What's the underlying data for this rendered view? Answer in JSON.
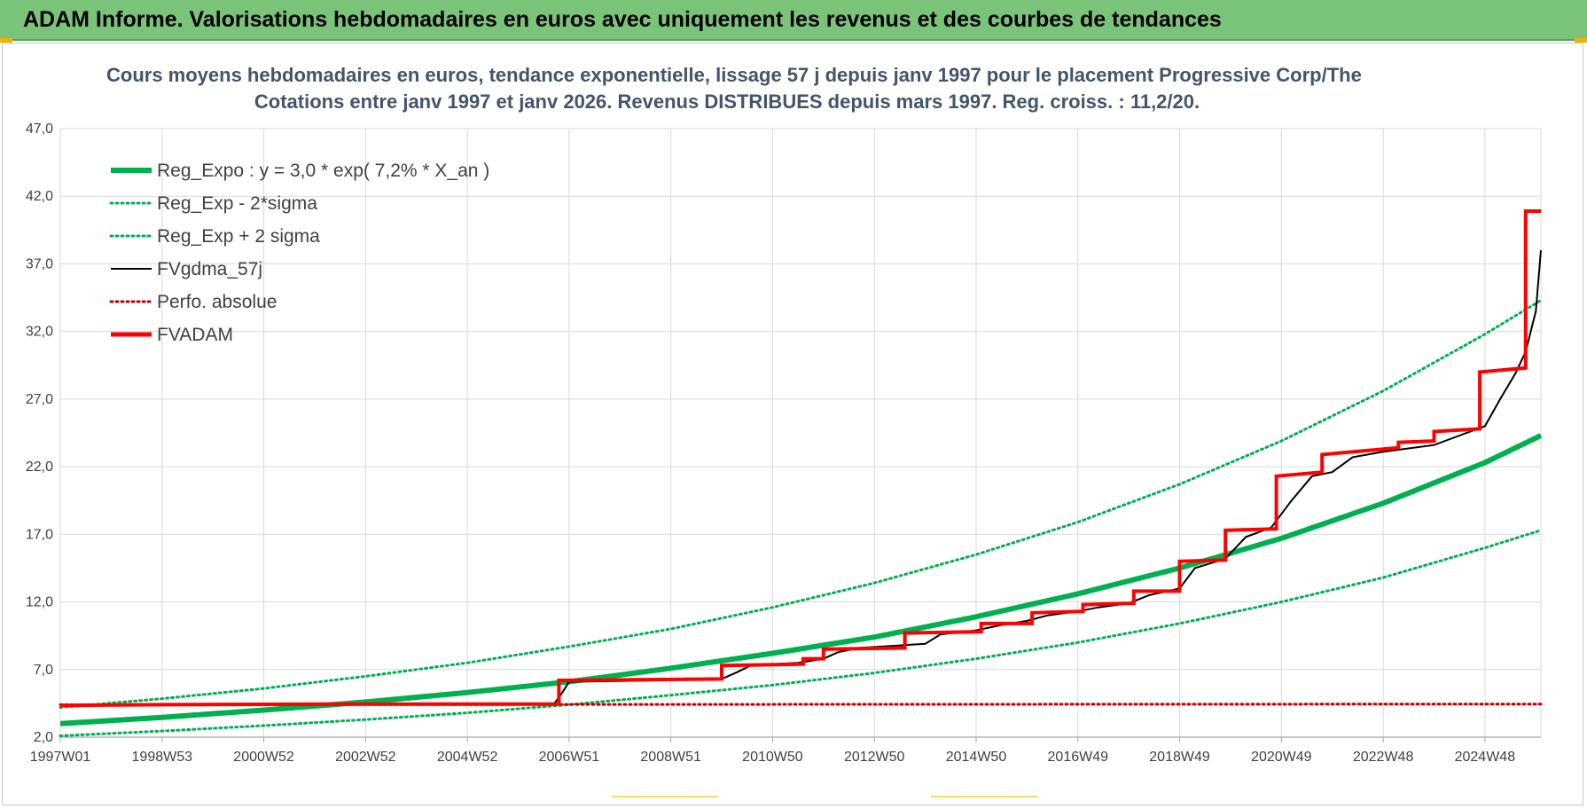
{
  "banner": {
    "title": "ADAM Informe. Valorisations hebdomadaires en euros avec uniquement les revenus et des courbes de tendances"
  },
  "colors": {
    "banner_bg": "#7ac47a",
    "reg_expo": "#00b050",
    "fvadam": "#ff0000",
    "fvgdma": "#000000",
    "perfo": "#c00000",
    "title": "#44546a"
  },
  "chart_data": {
    "type": "line",
    "title_line1": "Cours moyens hebdomadaires en euros, tendance exponentielle, lissage 57 j depuis janv 1997  pour le placement Progressive Corp/The",
    "title_line2": "Cotations entre janv 1997 et janv 2026. Revenus DISTRIBUES depuis mars 1997. Reg. croiss. : 11,2/20.",
    "xlabel": "",
    "ylabel": "",
    "x_range_years": [
      1997.0,
      2026.1
    ],
    "ylim": [
      2.0,
      47.0
    ],
    "y_ticks": [
      "2,0",
      "7,0",
      "12,0",
      "17,0",
      "22,0",
      "27,0",
      "32,0",
      "37,0",
      "42,0",
      "47,0"
    ],
    "x_ticks": [
      {
        "label": "1997W01",
        "year": 1997.0
      },
      {
        "label": "1998W53",
        "year": 1999.0
      },
      {
        "label": "2000W52",
        "year": 2001.0
      },
      {
        "label": "2002W52",
        "year": 2003.0
      },
      {
        "label": "2004W52",
        "year": 2005.0
      },
      {
        "label": "2006W51",
        "year": 2007.0
      },
      {
        "label": "2008W51",
        "year": 2009.0
      },
      {
        "label": "2010W50",
        "year": 2011.0
      },
      {
        "label": "2012W50",
        "year": 2013.0
      },
      {
        "label": "2014W50",
        "year": 2015.0
      },
      {
        "label": "2016W49",
        "year": 2017.0
      },
      {
        "label": "2018W49",
        "year": 2019.0
      },
      {
        "label": "2020W49",
        "year": 2021.0
      },
      {
        "label": "2022W48",
        "year": 2023.0
      },
      {
        "label": "2024W48",
        "year": 2025.0
      }
    ],
    "grid": true,
    "legend_position": "top-left",
    "series": [
      {
        "name": "Reg_Expo : y = 3,0 * exp( 7,2% *  X_an )",
        "style": "solid-thick",
        "color": "#00b050",
        "points": [
          [
            1997.0,
            3.0
          ],
          [
            1999.0,
            3.46
          ],
          [
            2001.0,
            4.0
          ],
          [
            2003.0,
            4.6
          ],
          [
            2005.0,
            5.3
          ],
          [
            2007.0,
            6.1
          ],
          [
            2009.0,
            7.1
          ],
          [
            2011.0,
            8.2
          ],
          [
            2013.0,
            9.4
          ],
          [
            2015.0,
            10.9
          ],
          [
            2017.0,
            12.6
          ],
          [
            2019.0,
            14.5
          ],
          [
            2021.0,
            16.7
          ],
          [
            2023.0,
            19.3
          ],
          [
            2025.0,
            22.3
          ],
          [
            2026.1,
            24.3
          ]
        ]
      },
      {
        "name": "Reg_Exp - 2*sigma",
        "style": "dotted",
        "color": "#00b050",
        "points": [
          [
            1997.0,
            2.1
          ],
          [
            1999.0,
            2.45
          ],
          [
            2001.0,
            2.85
          ],
          [
            2003.0,
            3.3
          ],
          [
            2005.0,
            3.8
          ],
          [
            2007.0,
            4.4
          ],
          [
            2009.0,
            5.1
          ],
          [
            2011.0,
            5.85
          ],
          [
            2013.0,
            6.75
          ],
          [
            2015.0,
            7.8
          ],
          [
            2017.0,
            9.0
          ],
          [
            2019.0,
            10.4
          ],
          [
            2021.0,
            12.0
          ],
          [
            2023.0,
            13.8
          ],
          [
            2025.0,
            16.0
          ],
          [
            2026.1,
            17.3
          ]
        ]
      },
      {
        "name": "Reg_Exp + 2 sigma",
        "style": "dotted",
        "color": "#00b050",
        "points": [
          [
            1997.0,
            4.2
          ],
          [
            1999.0,
            4.85
          ],
          [
            2001.0,
            5.6
          ],
          [
            2003.0,
            6.5
          ],
          [
            2005.0,
            7.5
          ],
          [
            2007.0,
            8.7
          ],
          [
            2009.0,
            10.0
          ],
          [
            2011.0,
            11.6
          ],
          [
            2013.0,
            13.4
          ],
          [
            2015.0,
            15.5
          ],
          [
            2017.0,
            17.9
          ],
          [
            2019.0,
            20.7
          ],
          [
            2021.0,
            23.9
          ],
          [
            2023.0,
            27.6
          ],
          [
            2025.0,
            31.8
          ],
          [
            2026.1,
            34.3
          ]
        ]
      },
      {
        "name": "FVgdma_57j",
        "style": "solid-thin",
        "color": "#000000",
        "points": [
          [
            1997.0,
            4.4
          ],
          [
            2005.0,
            4.4
          ],
          [
            2006.7,
            4.45
          ],
          [
            2006.85,
            5.2
          ],
          [
            2007.0,
            6.1
          ],
          [
            2008.0,
            6.15
          ],
          [
            2010.0,
            6.3
          ],
          [
            2010.3,
            6.8
          ],
          [
            2010.6,
            7.35
          ],
          [
            2011.0,
            7.4
          ],
          [
            2011.5,
            7.5
          ],
          [
            2012.0,
            7.8
          ],
          [
            2012.3,
            8.3
          ],
          [
            2012.7,
            8.6
          ],
          [
            2014.0,
            8.9
          ],
          [
            2014.3,
            9.6
          ],
          [
            2015.0,
            9.9
          ],
          [
            2015.5,
            10.3
          ],
          [
            2016.0,
            10.6
          ],
          [
            2016.4,
            11.0
          ],
          [
            2017.0,
            11.3
          ],
          [
            2017.4,
            11.6
          ],
          [
            2018.0,
            11.9
          ],
          [
            2018.4,
            12.5
          ],
          [
            2019.0,
            13.0
          ],
          [
            2019.3,
            14.5
          ],
          [
            2019.9,
            15.2
          ],
          [
            2020.3,
            16.8
          ],
          [
            2020.8,
            17.5
          ],
          [
            2021.2,
            19.5
          ],
          [
            2021.6,
            21.3
          ],
          [
            2022.0,
            21.6
          ],
          [
            2022.4,
            22.7
          ],
          [
            2023.0,
            23.1
          ],
          [
            2024.0,
            23.6
          ],
          [
            2024.5,
            24.3
          ],
          [
            2025.0,
            25.0
          ],
          [
            2025.3,
            27.0
          ],
          [
            2025.6,
            28.9
          ],
          [
            2025.8,
            30.5
          ],
          [
            2026.0,
            33.5
          ],
          [
            2026.1,
            38.0
          ]
        ]
      },
      {
        "name": "Perfo. absolue",
        "style": "dotted",
        "color": "#c00000",
        "points": [
          [
            1997.0,
            4.4
          ],
          [
            2026.1,
            4.45
          ]
        ]
      },
      {
        "name": "FVADAM",
        "style": "step-thick",
        "color": "#ff0000",
        "points": [
          [
            1997.0,
            4.35
          ],
          [
            1999.0,
            4.4
          ],
          [
            2003.0,
            4.45
          ],
          [
            2006.8,
            4.45
          ],
          [
            2006.8,
            6.2
          ],
          [
            2010.0,
            6.3
          ],
          [
            2010.0,
            7.3
          ],
          [
            2011.6,
            7.4
          ],
          [
            2011.6,
            7.8
          ],
          [
            2012.0,
            7.8
          ],
          [
            2012.0,
            8.5
          ],
          [
            2013.6,
            8.6
          ],
          [
            2013.6,
            9.7
          ],
          [
            2015.1,
            9.8
          ],
          [
            2015.1,
            10.4
          ],
          [
            2016.1,
            10.4
          ],
          [
            2016.1,
            11.2
          ],
          [
            2017.1,
            11.3
          ],
          [
            2017.1,
            11.8
          ],
          [
            2018.1,
            11.9
          ],
          [
            2018.1,
            12.8
          ],
          [
            2019.0,
            12.8
          ],
          [
            2019.0,
            15.0
          ],
          [
            2019.9,
            15.1
          ],
          [
            2019.9,
            17.3
          ],
          [
            2020.9,
            17.4
          ],
          [
            2020.9,
            21.3
          ],
          [
            2021.8,
            21.6
          ],
          [
            2021.8,
            22.9
          ],
          [
            2023.3,
            23.4
          ],
          [
            2023.3,
            23.8
          ],
          [
            2024.0,
            23.9
          ],
          [
            2024.0,
            24.6
          ],
          [
            2024.9,
            24.8
          ],
          [
            2024.9,
            29.0
          ],
          [
            2025.8,
            29.3
          ],
          [
            2025.8,
            40.9
          ],
          [
            2026.1,
            40.9
          ]
        ]
      }
    ]
  }
}
